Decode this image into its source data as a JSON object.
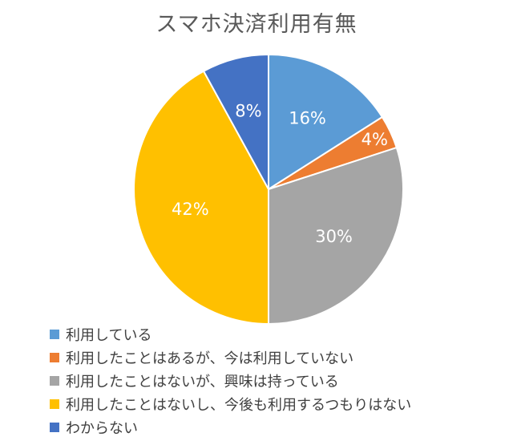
{
  "chart_data": {
    "type": "pie",
    "title": "スマホ決済利用有無",
    "slices": [
      {
        "label": "利用している",
        "value": 16,
        "display": "16%",
        "color": "#5b9bd5"
      },
      {
        "label": "利用したことはあるが、今は利用していない",
        "value": 4,
        "display": "4%",
        "color": "#ed7d31"
      },
      {
        "label": "利用したことはないが、興味は持っている",
        "value": 30,
        "display": "30%",
        "color": "#a5a5a5"
      },
      {
        "label": "利用したことはないし、今後も利用するつもりはない",
        "value": 42,
        "display": "42%",
        "color": "#ffc000"
      },
      {
        "label": "わからない",
        "value": 8,
        "display": "8%",
        "color": "#4472c4"
      }
    ],
    "legend_position": "bottom-left",
    "data_label_color": "#ffffff"
  }
}
